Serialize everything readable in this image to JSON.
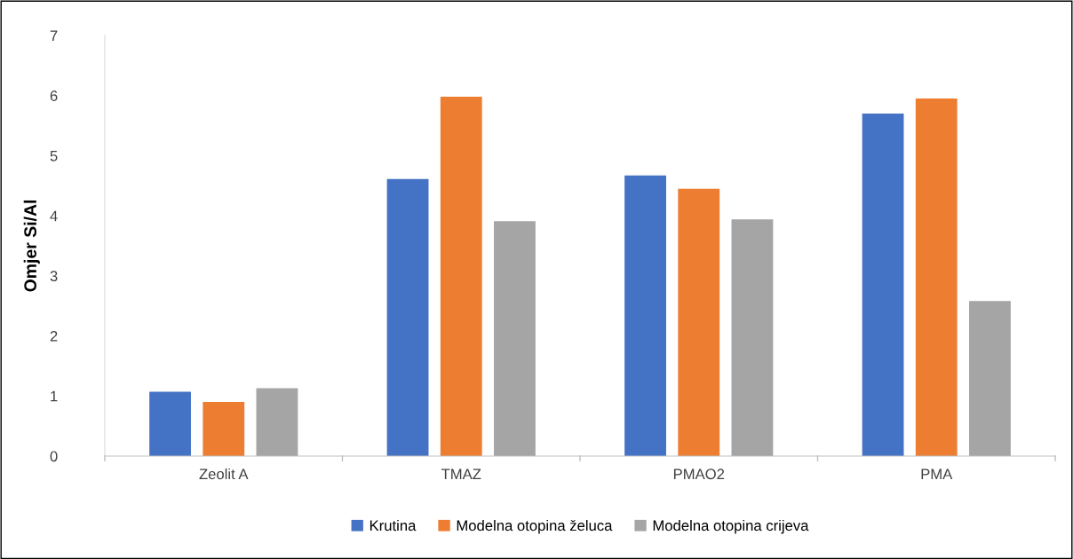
{
  "chart_data": {
    "type": "bar",
    "ylabel": "Omjer Si/Al",
    "categories": [
      "Zeolit A",
      "TMAZ",
      "PMAO2",
      "PMA"
    ],
    "series": [
      {
        "name": "Krutina",
        "color": "#4472c4",
        "values": [
          1.07,
          4.61,
          4.67,
          5.7
        ]
      },
      {
        "name": "Modelna otopina želuca",
        "color": "#ed7d31",
        "values": [
          0.9,
          5.98,
          4.45,
          5.95
        ]
      },
      {
        "name": "Modelna otopina crijeva",
        "color": "#a5a5a5",
        "values": [
          1.13,
          3.91,
          3.94,
          2.58
        ]
      }
    ],
    "ylim": [
      0,
      7
    ],
    "yticks": [
      0,
      1,
      2,
      3,
      4,
      5,
      6,
      7
    ],
    "grid": false,
    "legend": "bottom"
  }
}
